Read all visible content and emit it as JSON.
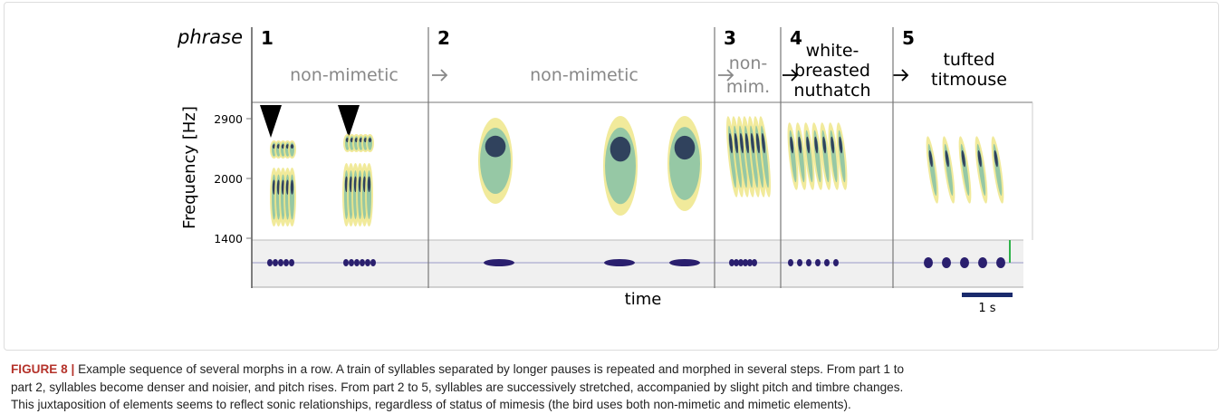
{
  "figure": {
    "row_label": "phrase",
    "phrases": [
      {
        "number": "1",
        "label": [
          "non-mimetic"
        ]
      },
      {
        "number": "2",
        "label": [
          "non-mimetic"
        ]
      },
      {
        "number": "3",
        "label": [
          "non-",
          "mim."
        ]
      },
      {
        "number": "4",
        "label": [
          "white-",
          "breasted",
          "nuthatch"
        ]
      },
      {
        "number": "5",
        "label": [
          "tufted",
          "titmouse"
        ]
      }
    ],
    "y_axis_label": "Frequency [Hz]",
    "y_ticks": [
      "2900",
      "2000",
      "1400"
    ],
    "x_axis_label": "time",
    "scale_bar": "1 s"
  },
  "caption": {
    "label": "FIGURE 8 |",
    "lines": [
      "Example sequence of several morphs in a row. A train of syllables separated by longer pauses is repeated and morphed in several steps. From part 1 to",
      "part 2, syllables become denser and noisier, and pitch rises. From part 2 to 5, syllables are successively stretched, accompanied by slight pitch and timbre changes.",
      "This juxtaposition of elements seems to reflect sonic relationships, regardless of status of mimesis (the bird uses both non-mimetic and mimetic elements)."
    ]
  }
}
